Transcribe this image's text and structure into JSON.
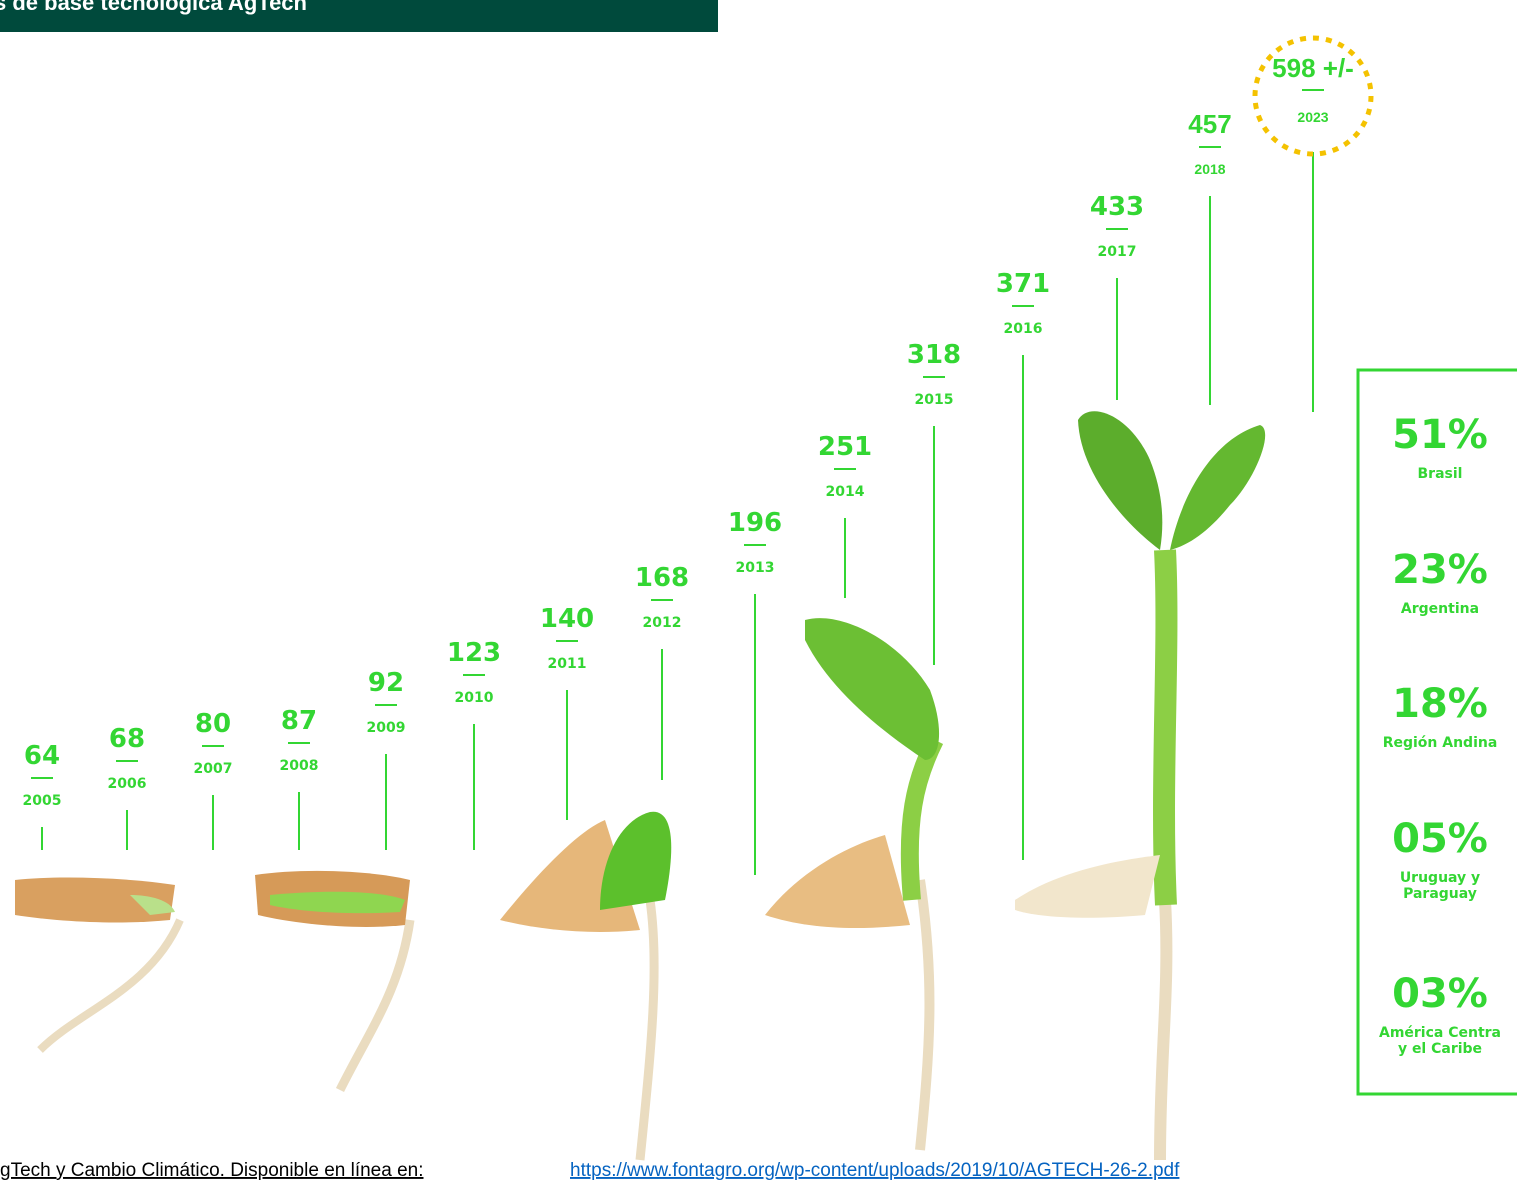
{
  "header": {
    "title": "s de base tecnológica AgTech"
  },
  "timeline": [
    {
      "value": "64",
      "year": "2005"
    },
    {
      "value": "68",
      "year": "2006"
    },
    {
      "value": "80",
      "year": "2007"
    },
    {
      "value": "87",
      "year": "2008"
    },
    {
      "value": "92",
      "year": "2009"
    },
    {
      "value": "123",
      "year": "2010"
    },
    {
      "value": "140",
      "year": "2011"
    },
    {
      "value": "168",
      "year": "2012"
    },
    {
      "value": "196",
      "year": "2013"
    },
    {
      "value": "251",
      "year": "2014"
    },
    {
      "value": "318",
      "year": "2015"
    },
    {
      "value": "371",
      "year": "2016"
    },
    {
      "value": "433",
      "year": "2017"
    },
    {
      "value": "457",
      "year": "2018"
    }
  ],
  "projection": {
    "value": "598 +/-",
    "year": "2023"
  },
  "shares": [
    {
      "percent": "51%",
      "region": [
        "Brasil"
      ]
    },
    {
      "percent": "23%",
      "region": [
        "Argentina"
      ]
    },
    {
      "percent": "18%",
      "region": [
        "Región Andina"
      ]
    },
    {
      "percent": "05%",
      "region": [
        "Uruguay y",
        "Paraguay"
      ]
    },
    {
      "percent": "03%",
      "region": [
        "América Centra",
        "y el Caribe"
      ]
    }
  ],
  "footer": {
    "text": "gTech y Cambio Climático. Disponible en línea en: ",
    "link": "https://www.fontagro.org/wp-content/uploads/2019/10/AGTECH-26-2.pdf"
  }
}
